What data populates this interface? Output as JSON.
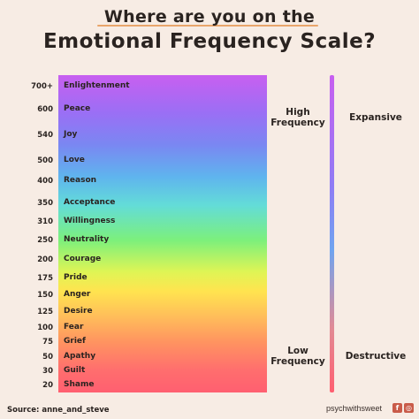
{
  "title_line1": "Where are you on the",
  "title_line2": "Emotional Frequency Scale?",
  "levels": [
    {
      "value": "700+",
      "name": "Enlightenment"
    },
    {
      "value": "600",
      "name": "Peace"
    },
    {
      "value": "540",
      "name": "Joy"
    },
    {
      "value": "500",
      "name": "Love"
    },
    {
      "value": "400",
      "name": "Reason"
    },
    {
      "value": "350",
      "name": "Acceptance"
    },
    {
      "value": "310",
      "name": "Willingness"
    },
    {
      "value": "250",
      "name": "Neutrality"
    },
    {
      "value": "200",
      "name": "Courage"
    },
    {
      "value": "175",
      "name": "Pride"
    },
    {
      "value": "150",
      "name": "Anger"
    },
    {
      "value": "125",
      "name": "Desire"
    },
    {
      "value": "100",
      "name": "Fear"
    },
    {
      "value": "75",
      "name": "Grief"
    },
    {
      "value": "50",
      "name": "Apathy"
    },
    {
      "value": "30",
      "name": "Guilt"
    },
    {
      "value": "20",
      "name": "Shame"
    }
  ],
  "high_label_1": "High",
  "high_label_2": "Frequency",
  "expansive_label": "Expansive",
  "low_label_1": "Low",
  "low_label_2": "Frequency",
  "destructive_label": "Destructive",
  "source": "Source: anne_and_steve",
  "handle": "psychwithsweet"
}
